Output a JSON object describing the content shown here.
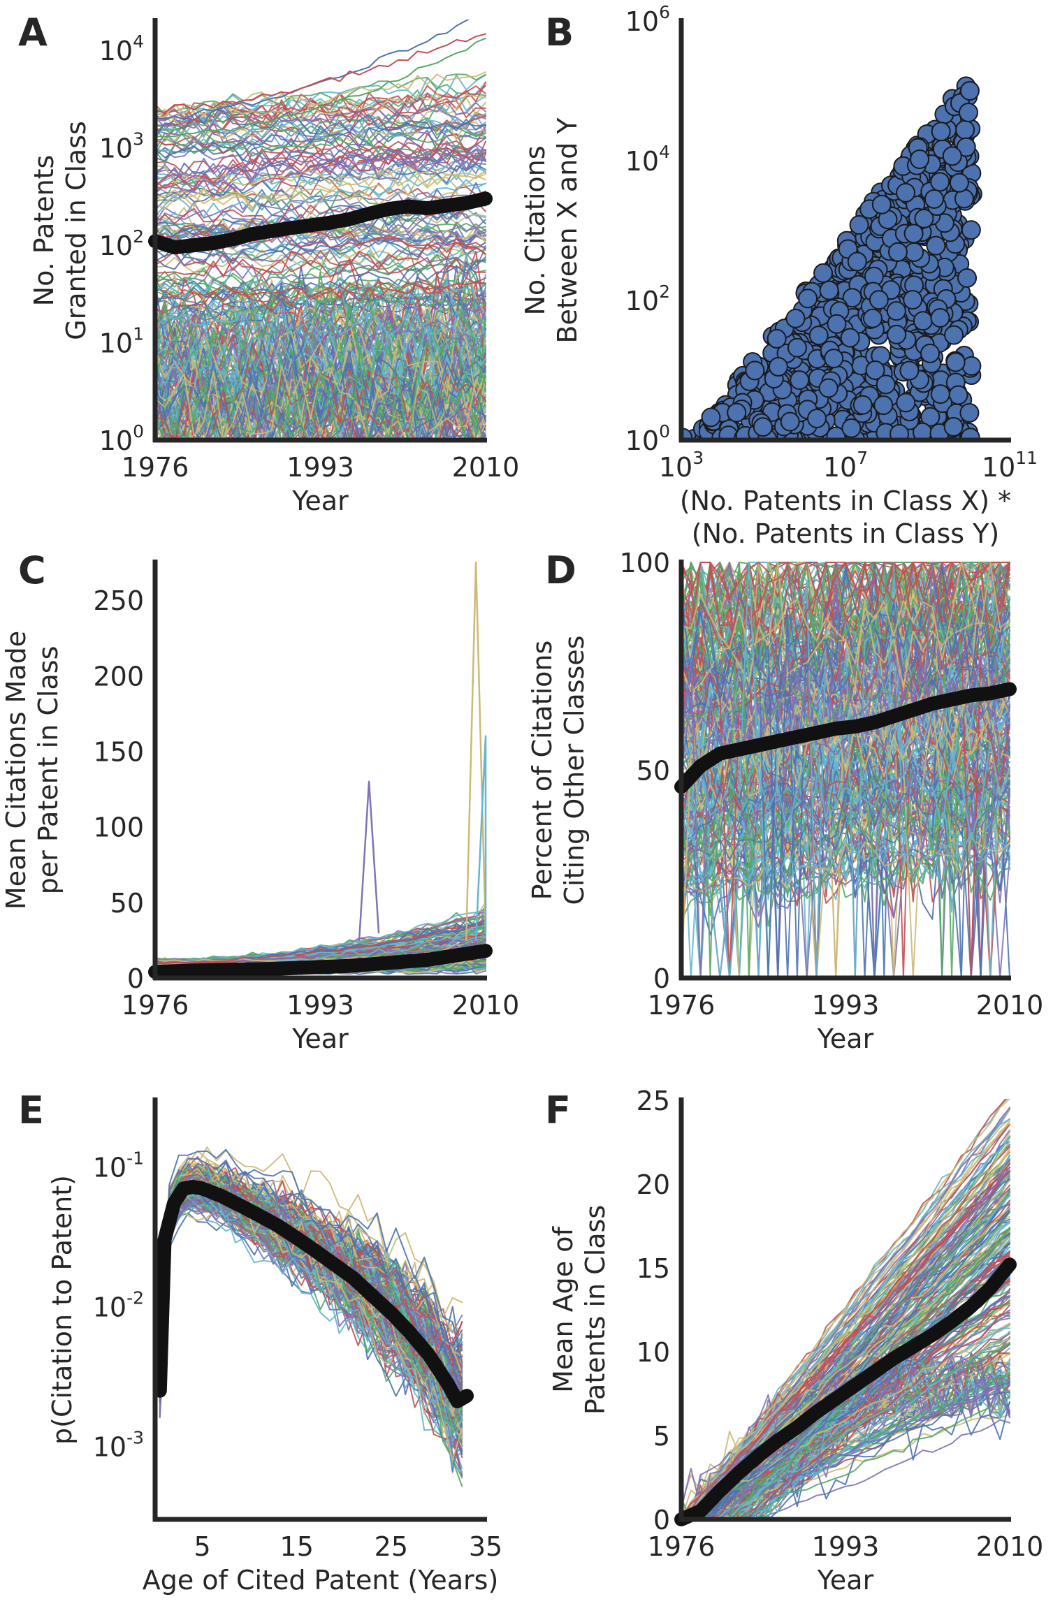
{
  "chart_data": [
    {
      "panel": "A",
      "type": "line",
      "yscale": "log",
      "xlabel": "Year",
      "ylabel_lines": [
        "No. Patents",
        "Granted in Class"
      ],
      "xlim": [
        1976,
        2010
      ],
      "ylim": [
        1,
        20000
      ],
      "xticks": [
        {
          "v": 1976,
          "label": "1976"
        },
        {
          "v": 1993,
          "label": "1993"
        },
        {
          "v": 2010,
          "label": "2010"
        }
      ],
      "yticks": [
        {
          "v": 1,
          "base": "10",
          "exp": "0"
        },
        {
          "v": 10,
          "base": "10",
          "exp": "1"
        },
        {
          "v": 100,
          "base": "10",
          "exp": "2"
        },
        {
          "v": 1000,
          "base": "10",
          "exp": "3"
        },
        {
          "v": 10000,
          "base": "10",
          "exp": "4"
        }
      ],
      "mean_series": {
        "name": "mean",
        "x": [
          1976,
          1978,
          1980,
          1982,
          1984,
          1986,
          1988,
          1990,
          1992,
          1994,
          1996,
          1998,
          2000,
          2002,
          2004,
          2006,
          2008,
          2010
        ],
        "values": [
          110,
          95,
          100,
          105,
          115,
          130,
          140,
          150,
          160,
          170,
          185,
          210,
          235,
          250,
          240,
          255,
          270,
          300
        ]
      }
    },
    {
      "panel": "B",
      "type": "scatter",
      "xscale": "log",
      "yscale": "log",
      "xlabel_lines": [
        "(No. Patents in Class X) *",
        "(No. Patents in Class Y)"
      ],
      "ylabel_lines": [
        "No. Citations",
        "Between X and Y"
      ],
      "xlim": [
        1000,
        100000000000.0
      ],
      "ylim": [
        1,
        1000000
      ],
      "xticks": [
        {
          "v": 1000,
          "base": "10",
          "exp": "3"
        },
        {
          "v": 10000000,
          "base": "10",
          "exp": "7"
        },
        {
          "v": 100000000000.0,
          "base": "10",
          "exp": "11"
        }
      ],
      "yticks": [
        {
          "v": 1,
          "base": "10",
          "exp": "0"
        },
        {
          "v": 100,
          "base": "10",
          "exp": "2"
        },
        {
          "v": 10000,
          "base": "10",
          "exp": "4"
        },
        {
          "v": 1000000,
          "base": "10",
          "exp": "6"
        }
      ],
      "marker_color": "#4c72b0"
    },
    {
      "panel": "C",
      "type": "line",
      "xlabel": "Year",
      "ylabel_lines": [
        "Mean Citations Made",
        "per Patent in Class"
      ],
      "xlim": [
        1976,
        2010
      ],
      "ylim": [
        0,
        275
      ],
      "xticks": [
        {
          "v": 1976,
          "label": "1976"
        },
        {
          "v": 1993,
          "label": "1993"
        },
        {
          "v": 2010,
          "label": "2010"
        }
      ],
      "yticks": [
        {
          "v": 0,
          "label": "0"
        },
        {
          "v": 50,
          "label": "50"
        },
        {
          "v": 100,
          "label": "100"
        },
        {
          "v": 150,
          "label": "150"
        },
        {
          "v": 200,
          "label": "200"
        },
        {
          "v": 250,
          "label": "250"
        }
      ],
      "mean_series": {
        "name": "mean",
        "x": [
          1976,
          1980,
          1984,
          1988,
          1992,
          1996,
          2000,
          2004,
          2008,
          2010
        ],
        "values": [
          4,
          5,
          5.5,
          6,
          7,
          8,
          10,
          12,
          16,
          18
        ]
      },
      "spikes": [
        {
          "x": 1998,
          "y": 130
        },
        {
          "x": 2009,
          "y": 275
        },
        {
          "x": 2010,
          "y": 160
        }
      ]
    },
    {
      "panel": "D",
      "type": "line",
      "xlabel": "Year",
      "ylabel_lines": [
        "Percent of Citations",
        "Citing Other Classes"
      ],
      "xlim": [
        1976,
        2010
      ],
      "ylim": [
        0,
        100
      ],
      "xticks": [
        {
          "v": 1976,
          "label": "1976"
        },
        {
          "v": 1993,
          "label": "1993"
        },
        {
          "v": 2010,
          "label": "2010"
        }
      ],
      "yticks": [
        {
          "v": 0,
          "label": "0"
        },
        {
          "v": 50,
          "label": "50"
        },
        {
          "v": 100,
          "label": "100"
        }
      ],
      "mean_series": {
        "name": "mean",
        "x": [
          1976,
          1978,
          1980,
          1982,
          1984,
          1986,
          1988,
          1990,
          1992,
          1994,
          1996,
          1998,
          2000,
          2002,
          2004,
          2006,
          2008,
          2010
        ],
        "values": [
          46,
          51,
          54,
          55,
          56,
          57,
          58,
          59,
          60,
          60.5,
          61.5,
          63,
          64.5,
          66,
          67,
          68,
          68.5,
          69.5
        ]
      }
    },
    {
      "panel": "E",
      "type": "line",
      "yscale": "log",
      "xlabel": "Age of Cited Patent (Years)",
      "ylabel_lines": [
        "p(Citation to Patent)"
      ],
      "xlim": [
        0,
        35
      ],
      "ylim": [
        0.0003,
        0.3
      ],
      "xticks": [
        {
          "v": 5,
          "label": "5"
        },
        {
          "v": 15,
          "label": "15"
        },
        {
          "v": 25,
          "label": "25"
        },
        {
          "v": 35,
          "label": "35"
        }
      ],
      "yticks": [
        {
          "v": 0.001,
          "base": "10",
          "exp": "-3"
        },
        {
          "v": 0.01,
          "base": "10",
          "exp": "-2"
        },
        {
          "v": 0.1,
          "base": "10",
          "exp": "-1"
        }
      ],
      "mean_series": {
        "name": "mean",
        "x": [
          0.5,
          1,
          2,
          3,
          4,
          5,
          7,
          9,
          11,
          13,
          15,
          17,
          19,
          21,
          23,
          25,
          27,
          29,
          31,
          32,
          33
        ],
        "values": [
          0.0025,
          0.03,
          0.055,
          0.07,
          0.072,
          0.07,
          0.062,
          0.053,
          0.045,
          0.038,
          0.031,
          0.025,
          0.02,
          0.016,
          0.012,
          0.009,
          0.0065,
          0.0045,
          0.0028,
          0.0021,
          0.0023
        ]
      }
    },
    {
      "panel": "F",
      "type": "line",
      "xlabel": "Year",
      "ylabel_lines": [
        "Mean Age of",
        "Patents in Class"
      ],
      "xlim": [
        1976,
        2010
      ],
      "ylim": [
        0,
        25
      ],
      "xticks": [
        {
          "v": 1976,
          "label": "1976"
        },
        {
          "v": 1993,
          "label": "1993"
        },
        {
          "v": 2010,
          "label": "2010"
        }
      ],
      "yticks": [
        {
          "v": 0,
          "label": "0"
        },
        {
          "v": 5,
          "label": "5"
        },
        {
          "v": 10,
          "label": "10"
        },
        {
          "v": 15,
          "label": "15"
        },
        {
          "v": 20,
          "label": "20"
        },
        {
          "v": 25,
          "label": "25"
        }
      ],
      "mean_series": {
        "name": "mean",
        "x": [
          1976,
          1978,
          1980,
          1982,
          1984,
          1986,
          1988,
          1990,
          1992,
          1994,
          1996,
          1998,
          2000,
          2002,
          2004,
          2006,
          2008,
          2010
        ],
        "values": [
          0,
          0.5,
          1.7,
          2.8,
          3.8,
          4.7,
          5.5,
          6.4,
          7.2,
          8.0,
          8.8,
          9.6,
          10.3,
          11.0,
          11.8,
          12.7,
          13.8,
          15.2
        ]
      }
    }
  ],
  "palette": [
    "#4c72b0",
    "#55a868",
    "#c44e52",
    "#8172b2",
    "#ccb974",
    "#64b5cd"
  ],
  "mean_color": "#111111"
}
